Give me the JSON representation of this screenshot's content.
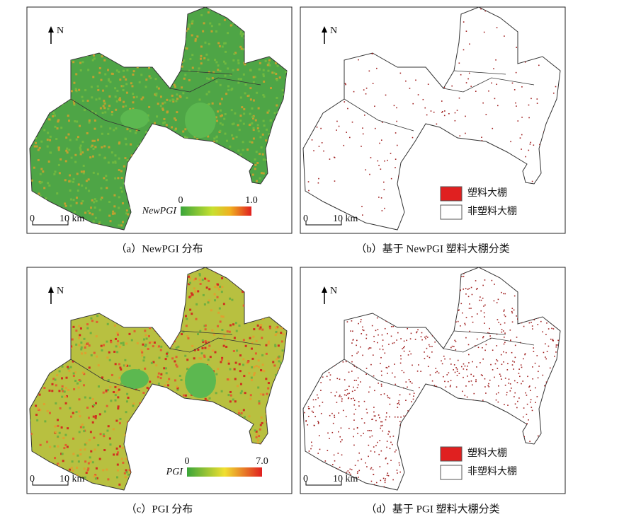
{
  "panels": [
    {
      "caption": "（a）NewPGI 分布",
      "north": "N",
      "scale": {
        "start": "0",
        "end": "10 km"
      },
      "colorbar": {
        "label": "NewPGI",
        "min": "0",
        "max": "1.0"
      }
    },
    {
      "caption": "（b）基于 NewPGI 塑料大棚分类",
      "north": "N",
      "scale": {
        "start": "0",
        "end": "10 km"
      },
      "legend": [
        "塑料大棚",
        "非塑料大棚"
      ]
    },
    {
      "caption": "（c）PGI 分布",
      "north": "N",
      "scale": {
        "start": "0",
        "end": "10 km"
      },
      "colorbar": {
        "label": "PGI",
        "min": "0",
        "max": "7.0"
      }
    },
    {
      "caption": "（d）基于 PGI 塑料大棚分类",
      "north": "N",
      "scale": {
        "start": "0",
        "end": "10 km"
      },
      "legend": [
        "塑料大棚",
        "非塑料大棚"
      ]
    }
  ]
}
